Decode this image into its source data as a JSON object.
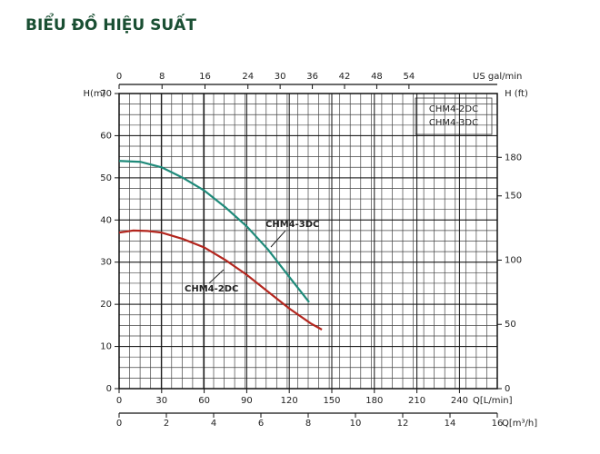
{
  "chart_data": {
    "type": "line",
    "title": "BIỂU ĐỒ HIỆU SUẤT",
    "ylabel": "H(m)",
    "y2label": "H (ft)",
    "xlabel": "Q[L/min]",
    "x2label": "US gal/min",
    "x3label": "Q[m³/h]",
    "xlim": [
      0,
      266.67
    ],
    "xticks": [
      0,
      30,
      60,
      90,
      120,
      150,
      180,
      210,
      240
    ],
    "x2lim": [
      0,
      70.45
    ],
    "x2ticks": [
      0,
      8,
      16,
      24,
      30,
      36,
      42,
      48,
      54
    ],
    "x3lim": [
      0,
      16
    ],
    "x3ticks": [
      0,
      2,
      4,
      6,
      8,
      10,
      12,
      14,
      16
    ],
    "ylim": [
      0,
      70
    ],
    "yticks": [
      0,
      10,
      20,
      30,
      40,
      50,
      60,
      70
    ],
    "y2lim": [
      0,
      229.66
    ],
    "y2ticks": [
      0,
      50,
      100,
      150,
      180
    ],
    "grid": true,
    "series": [
      {
        "name": "CHM4-2DC",
        "color": "#b3261e",
        "x": [
          0,
          10,
          20,
          30,
          45,
          60,
          75,
          90,
          105,
          120,
          135,
          143
        ],
        "values": [
          37,
          37.5,
          37.4,
          37,
          35.5,
          33.5,
          30.5,
          27,
          23,
          19,
          15.5,
          14
        ]
      },
      {
        "name": "CHM4-3DC",
        "color": "#1f8a7a",
        "x": [
          0,
          15,
          30,
          45,
          60,
          75,
          90,
          105,
          120,
          134
        ],
        "values": [
          54,
          53.8,
          52.5,
          50,
          47,
          43,
          38.5,
          33,
          26.5,
          20.5
        ]
      }
    ]
  }
}
